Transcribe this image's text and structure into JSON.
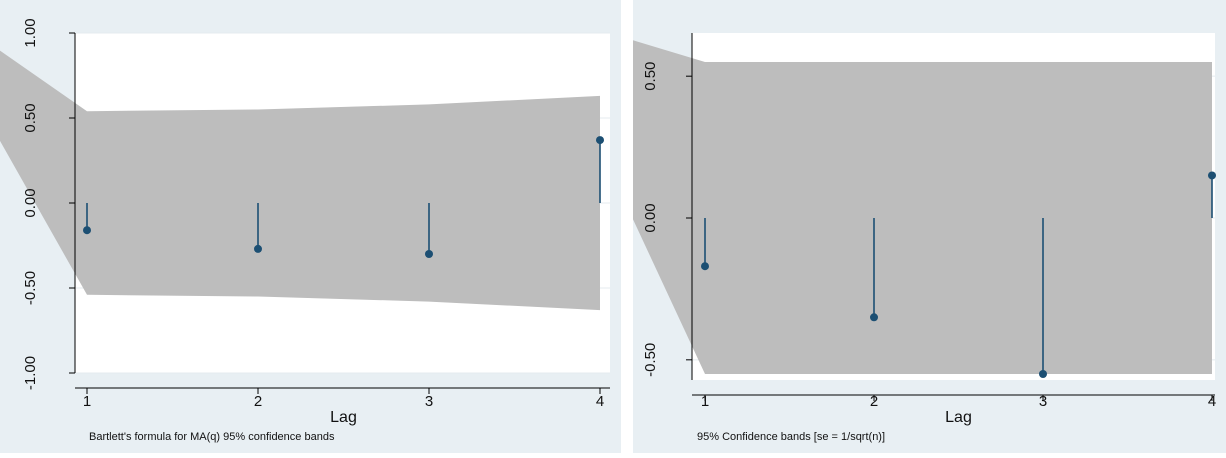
{
  "colors": {
    "background": "#e8eff3",
    "plot_area": "#ffffff",
    "band_fill": "#bdbdbd",
    "gridline": "#e4ebef",
    "spike": "#1c4f73",
    "axis": "#000000"
  },
  "chart_data": [
    {
      "type": "spike",
      "xlabel": "Lag",
      "ylabel": "",
      "note": "Bartlett's formula for MA(q) 95% confidence bands",
      "xlim": [
        1,
        4
      ],
      "ylim": [
        -1.0,
        1.0
      ],
      "x_ticks": [
        1,
        2,
        3,
        4
      ],
      "y_ticks": [
        -1.0,
        -0.5,
        0.0,
        0.5,
        1.0
      ],
      "y_tick_labels": [
        "-1.00",
        "-0.50",
        "0.00",
        "0.50",
        "1.00"
      ],
      "grid": true,
      "series": [
        {
          "x": [
            1,
            2,
            3,
            4
          ],
          "values": [
            -0.16,
            -0.27,
            -0.3,
            0.37
          ]
        }
      ],
      "band": {
        "x": [
          0,
          1,
          2,
          3,
          4
        ],
        "upper": [
          1.24,
          0.54,
          0.55,
          0.58,
          0.63
        ],
        "lower": [
          1.24,
          -0.54,
          -0.55,
          -0.58,
          -0.63
        ]
      }
    },
    {
      "type": "spike",
      "xlabel": "Lag",
      "ylabel": "",
      "note": "95% Confidence bands [se = 1/sqrt(n)]",
      "xlim": [
        1,
        4
      ],
      "ylim": [
        -0.55,
        0.55
      ],
      "x_ticks": [
        1,
        2,
        3,
        4
      ],
      "y_ticks": [
        -0.5,
        0.0,
        0.5
      ],
      "y_tick_labels": [
        "-0.50",
        "0.00",
        "0.50"
      ],
      "grid": true,
      "series": [
        {
          "x": [
            1,
            2,
            3,
            4
          ],
          "values": [
            -0.17,
            -0.35,
            -0.55,
            0.15
          ]
        }
      ],
      "band": {
        "x": [
          0,
          1,
          4
        ],
        "upper": [
          0.73,
          0.55,
          0.55
        ],
        "lower": [
          0.73,
          -0.55,
          -0.55
        ]
      }
    }
  ]
}
